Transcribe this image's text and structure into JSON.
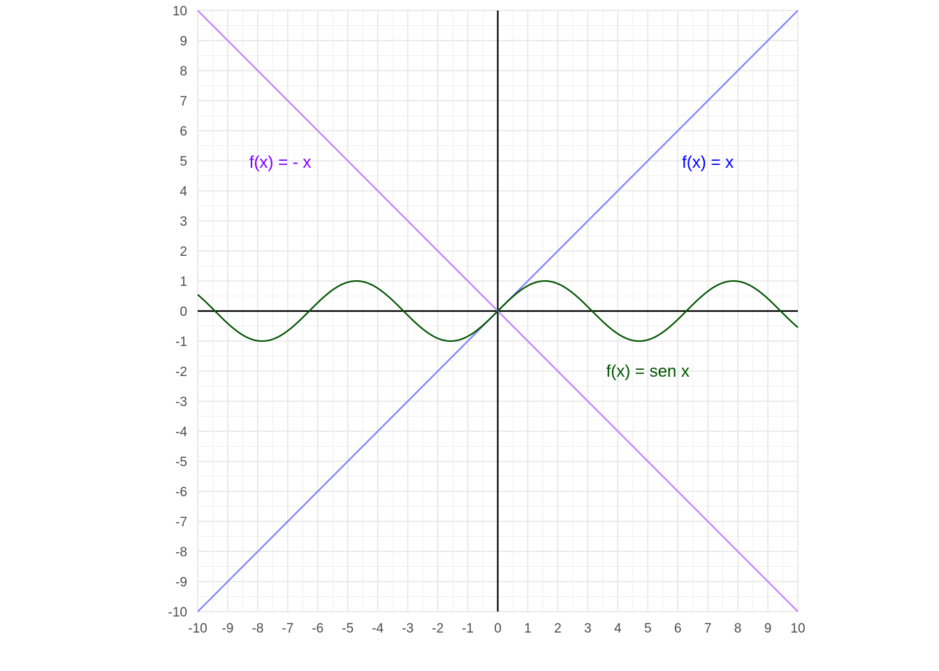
{
  "chart_data": {
    "type": "line",
    "title": "",
    "xlabel": "",
    "ylabel": "",
    "xlim": [
      -10,
      10
    ],
    "ylim": [
      -10,
      10
    ],
    "grid": true,
    "minor_grid_step": 0.5,
    "axes_lines": "x=0 and y=0 drawn in black",
    "x_ticks": [
      "-10",
      "-9",
      "-8",
      "-7",
      "-6",
      "-5",
      "-4",
      "-3",
      "-2",
      "-1",
      "0",
      "1",
      "2",
      "3",
      "4",
      "5",
      "6",
      "7",
      "8",
      "9",
      "10"
    ],
    "y_ticks": [
      "10",
      "9",
      "8",
      "7",
      "6",
      "5",
      "4",
      "3",
      "2",
      "1",
      "0",
      "-1",
      "-2",
      "-3",
      "-4",
      "-5",
      "-6",
      "-7",
      "-8",
      "-9",
      "-10"
    ],
    "series": [
      {
        "function": "x",
        "color": "#8080ff",
        "x": [
          -10,
          10
        ],
        "y": [
          -10,
          10
        ]
      },
      {
        "function": "-x",
        "color": "#c080ff",
        "x": [
          -10,
          10
        ],
        "y": [
          10,
          -10
        ]
      },
      {
        "function": "sin",
        "color": "#005500",
        "x_range": [
          -10,
          10
        ]
      }
    ],
    "annotations": [
      {
        "text": "f(x) = - x",
        "x": -7.25,
        "y": 4.95,
        "color": "#8000ff"
      },
      {
        "text": "f(x) = x",
        "x": 7.0,
        "y": 4.95,
        "color": "#0000ff"
      },
      {
        "text": "f(x) = sen x",
        "x": 5.0,
        "y": -2.0,
        "color": "#005500"
      }
    ]
  }
}
